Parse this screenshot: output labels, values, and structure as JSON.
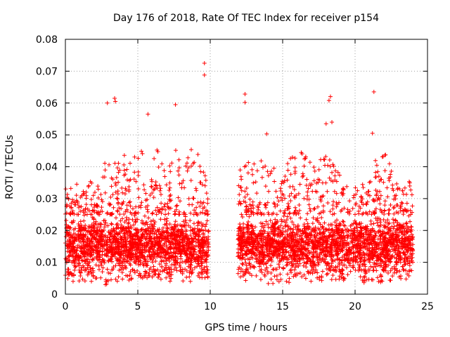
{
  "chart_data": {
    "type": "scatter",
    "title": "Day 176 of 2018, Rate Of TEC Index for receiver p154",
    "xlabel": "GPS time / hours",
    "ylabel": "ROTI / TECUs",
    "xlim": [
      0,
      25
    ],
    "ylim": [
      0,
      0.08
    ],
    "x_ticks": [
      0,
      5,
      10,
      15,
      20,
      25
    ],
    "x_tick_labels": [
      "0",
      "5",
      "10",
      "15",
      "20",
      "25"
    ],
    "y_ticks": [
      0,
      0.01,
      0.02,
      0.03,
      0.04,
      0.05,
      0.06,
      0.07,
      0.08
    ],
    "y_tick_labels": [
      "0",
      "0.01",
      "0.02",
      "0.03",
      "0.04",
      "0.05",
      "0.06",
      "0.07",
      "0.08"
    ],
    "grid": true,
    "marker": "+",
    "series_color": "#ff0000",
    "data_gaps_hours": [
      [
        9.9,
        11.9
      ]
    ],
    "notable_points": [
      {
        "x": 3.4,
        "y": 0.0615
      },
      {
        "x": 3.45,
        "y": 0.0605
      },
      {
        "x": 2.9,
        "y": 0.06
      },
      {
        "x": 5.7,
        "y": 0.0565
      },
      {
        "x": 7.6,
        "y": 0.0595
      },
      {
        "x": 9.6,
        "y": 0.0725
      },
      {
        "x": 9.6,
        "y": 0.0688
      },
      {
        "x": 12.4,
        "y": 0.0628
      },
      {
        "x": 12.4,
        "y": 0.0602
      },
      {
        "x": 18.3,
        "y": 0.062
      },
      {
        "x": 18.2,
        "y": 0.0608
      },
      {
        "x": 18.4,
        "y": 0.054
      },
      {
        "x": 18.0,
        "y": 0.0535
      },
      {
        "x": 21.3,
        "y": 0.0635
      },
      {
        "x": 21.2,
        "y": 0.0505
      },
      {
        "x": 13.9,
        "y": 0.0503
      }
    ],
    "envelope": [
      {
        "x": 0.0,
        "low": 0.004,
        "high": 0.033
      },
      {
        "x": 1.0,
        "low": 0.004,
        "high": 0.035
      },
      {
        "x": 2.0,
        "low": 0.003,
        "high": 0.036
      },
      {
        "x": 3.0,
        "low": 0.003,
        "high": 0.046
      },
      {
        "x": 4.0,
        "low": 0.004,
        "high": 0.044
      },
      {
        "x": 5.0,
        "low": 0.005,
        "high": 0.046
      },
      {
        "x": 6.0,
        "low": 0.005,
        "high": 0.048
      },
      {
        "x": 7.0,
        "low": 0.004,
        "high": 0.044
      },
      {
        "x": 8.0,
        "low": 0.004,
        "high": 0.046
      },
      {
        "x": 9.0,
        "low": 0.004,
        "high": 0.046
      },
      {
        "x": 9.9,
        "low": 0.005,
        "high": 0.035
      },
      {
        "x": 11.9,
        "low": 0.004,
        "high": 0.038
      },
      {
        "x": 13.0,
        "low": 0.004,
        "high": 0.045
      },
      {
        "x": 14.0,
        "low": 0.003,
        "high": 0.04
      },
      {
        "x": 15.0,
        "low": 0.004,
        "high": 0.04
      },
      {
        "x": 16.0,
        "low": 0.003,
        "high": 0.046
      },
      {
        "x": 17.0,
        "low": 0.004,
        "high": 0.043
      },
      {
        "x": 18.0,
        "low": 0.004,
        "high": 0.044
      },
      {
        "x": 19.0,
        "low": 0.004,
        "high": 0.038
      },
      {
        "x": 20.0,
        "low": 0.004,
        "high": 0.034
      },
      {
        "x": 21.0,
        "low": 0.003,
        "high": 0.04
      },
      {
        "x": 22.0,
        "low": 0.004,
        "high": 0.046
      },
      {
        "x": 23.0,
        "low": 0.004,
        "high": 0.034
      },
      {
        "x": 24.0,
        "low": 0.005,
        "high": 0.036
      }
    ],
    "typical_range": [
      0.008,
      0.025
    ]
  }
}
